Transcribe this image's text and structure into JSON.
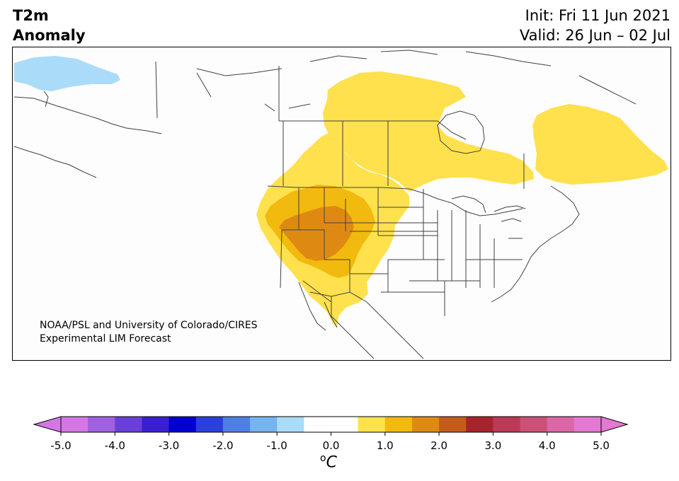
{
  "header": {
    "title_line1": "T2m",
    "title_line2": "Anomaly",
    "init": "Init: Fri 11 Jun 2021",
    "valid": "Valid: 26 Jun – 02 Jul"
  },
  "map": {
    "credit_line1": "NOAA/PSL and University of Colorado/CIRES",
    "credit_line2": "Experimental LIM Forecast",
    "colors": {
      "land": "#fdfdfd",
      "border": "#404040",
      "anom_neg_0_5_to_1": "#aadcfa",
      "anom_0_5_to_1": "#fee14d",
      "anom_1_to_1_5": "#f2b90e",
      "anom_1_5_to_2": "#de8a12"
    }
  },
  "colorbar": {
    "unit": "C",
    "unit_super": "o",
    "tick_labels": [
      "-5.0",
      "-4.0",
      "-3.0",
      "-2.0",
      "-1.0",
      "0.0",
      "1.0",
      "2.0",
      "3.0",
      "4.0",
      "5.0"
    ],
    "colors": [
      "#d477e4",
      "#a060e2",
      "#6a3fd9",
      "#3a1fd0",
      "#0000d0",
      "#2a3fdc",
      "#4f7fe6",
      "#76b4ef",
      "#aadcfa",
      "#ffffff",
      "#ffffff",
      "#fee14d",
      "#f2b90e",
      "#de8a12",
      "#c55b1b",
      "#a8242c",
      "#bc3a57",
      "#cd5077",
      "#db67a6",
      "#e479d2"
    ],
    "under_color": "#d477e4",
    "over_color": "#e479d2"
  }
}
